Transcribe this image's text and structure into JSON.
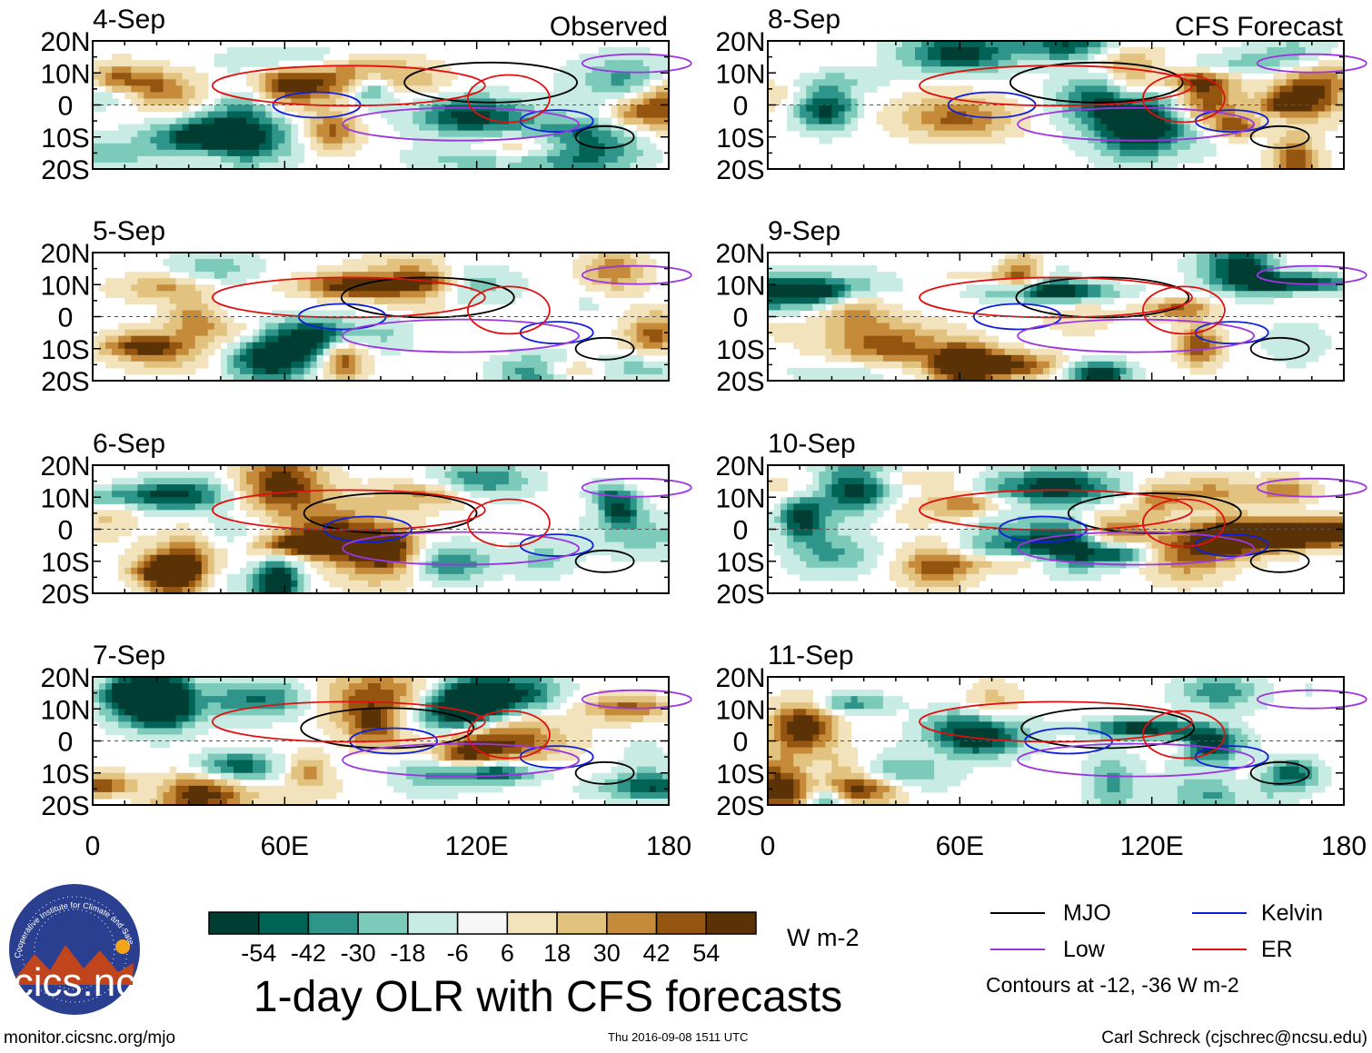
{
  "chart_data": {
    "type": "heatmap",
    "title": "1-day OLR with CFS forecasts",
    "column_labels": [
      "Observed",
      "CFS Forecast"
    ],
    "units": "W m-2",
    "x_ticks": [
      "0",
      "60E",
      "120E",
      "180"
    ],
    "y_ticks": [
      "20N",
      "10N",
      "0",
      "10S",
      "20S"
    ],
    "xlim": [
      0,
      180
    ],
    "ylim": [
      -20,
      20
    ],
    "colorbar": {
      "tick_labels": [
        "-54",
        "-42",
        "-30",
        "-18",
        "-6",
        "6",
        "18",
        "30",
        "42",
        "54"
      ],
      "colors": [
        "#003d33",
        "#006355",
        "#2f958a",
        "#7ccab9",
        "#c8ece3",
        "#f6f6f6",
        "#f2e3bd",
        "#e2c27f",
        "#c58b3a",
        "#93550f",
        "#5a3206"
      ]
    },
    "panels": [
      {
        "date": "4-Sep",
        "column": "Observed"
      },
      {
        "date": "5-Sep",
        "column": "Observed"
      },
      {
        "date": "6-Sep",
        "column": "Observed"
      },
      {
        "date": "7-Sep",
        "column": "Observed"
      },
      {
        "date": "8-Sep",
        "column": "CFS Forecast"
      },
      {
        "date": "9-Sep",
        "column": "CFS Forecast"
      },
      {
        "date": "10-Sep",
        "column": "CFS Forecast"
      },
      {
        "date": "11-Sep",
        "column": "CFS Forecast"
      }
    ],
    "legend": [
      {
        "name": "MJO",
        "color": "#000000"
      },
      {
        "name": "Kelvin",
        "color": "#1020d8"
      },
      {
        "name": "Low",
        "color": "#9b36e0"
      },
      {
        "name": "ER",
        "color": "#e01010"
      }
    ],
    "contour_note": "Contours at -12, -36 W m-2"
  },
  "logo": {
    "name": "cics.nc",
    "ring_text": "Cooperative Institute for Climate and Satellites"
  },
  "footer": {
    "url": "monitor.cicsnc.org/mjo",
    "timestamp": "Thu 2016-09-08 1511 UTC",
    "author": "Carl Schreck (cjschrec@ncsu.edu)"
  }
}
